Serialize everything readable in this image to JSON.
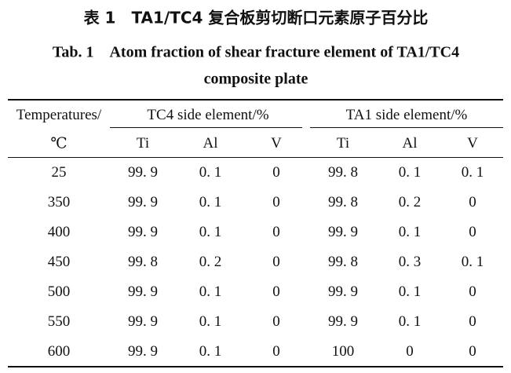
{
  "caption": {
    "title_cn": "表 1　TA1/TC4 复合板剪切断口元素原子百分比",
    "title_en_line1": "Tab. 1　Atom fraction of shear fracture element of TA1/TC4",
    "title_en_line2": "composite plate"
  },
  "table": {
    "header": {
      "first_col": [
        "Temperatures/",
        "℃"
      ],
      "groups": [
        "TC4 side element/%",
        "TA1 side element/%"
      ],
      "subheaders": [
        "Ti",
        "Al",
        "V",
        "Ti",
        "Al",
        "V"
      ]
    },
    "rows": [
      [
        "25",
        "99. 9",
        "0. 1",
        "0",
        "99. 8",
        "0. 1",
        "0. 1"
      ],
      [
        "350",
        "99. 9",
        "0. 1",
        "0",
        "99. 8",
        "0. 2",
        "0"
      ],
      [
        "400",
        "99. 9",
        "0. 1",
        "0",
        "99. 9",
        "0. 1",
        "0"
      ],
      [
        "450",
        "99. 8",
        "0. 2",
        "0",
        "99. 8",
        "0. 3",
        "0. 1"
      ],
      [
        "500",
        "99. 9",
        "0. 1",
        "0",
        "99. 9",
        "0. 1",
        "0"
      ],
      [
        "550",
        "99. 9",
        "0. 1",
        "0",
        "99. 9",
        "0. 1",
        "0"
      ],
      [
        "600",
        "99. 9",
        "0. 1",
        "0",
        "100",
        "0",
        "0"
      ]
    ]
  }
}
